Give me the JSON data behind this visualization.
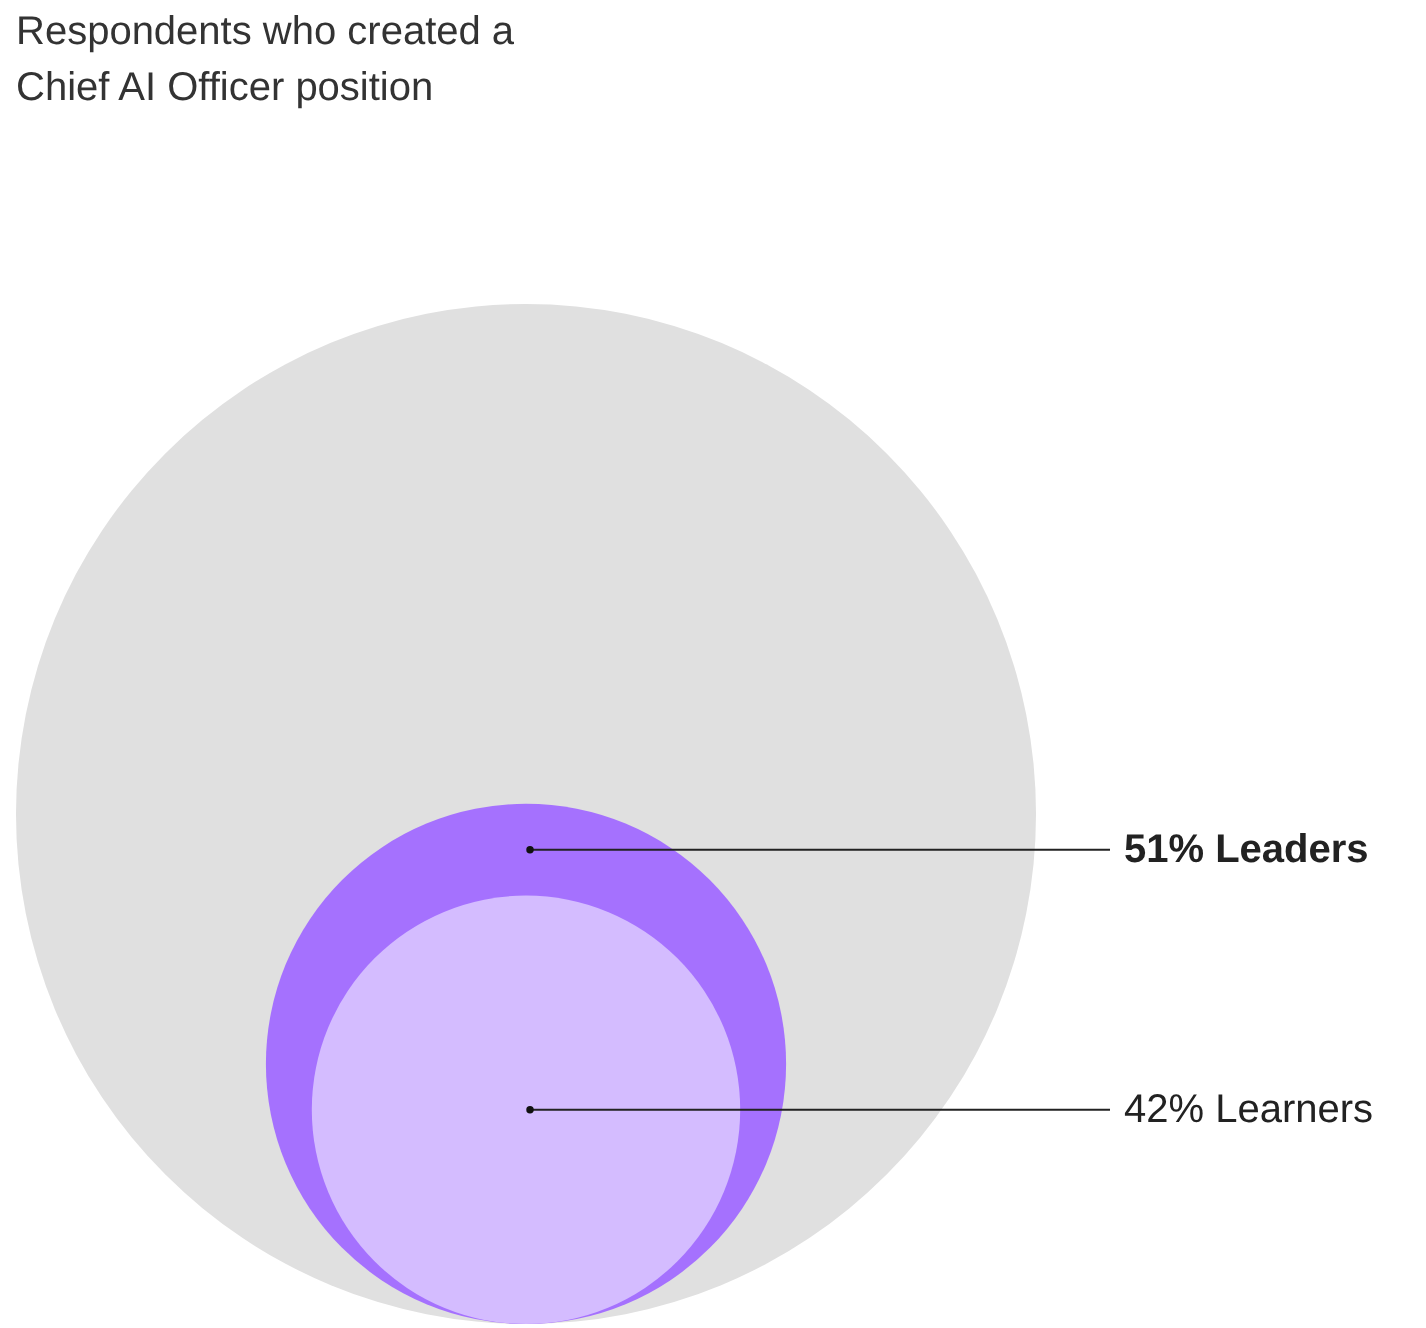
{
  "chart_data": {
    "type": "other",
    "title": "Respondents who created a Chief AI Officer position",
    "categories": [
      "Leaders",
      "Learners"
    ],
    "values": [
      51,
      42
    ],
    "value_labels": [
      "51%",
      "42%"
    ],
    "colors": [
      "#a571fe",
      "#d4bcff"
    ]
  }
}
